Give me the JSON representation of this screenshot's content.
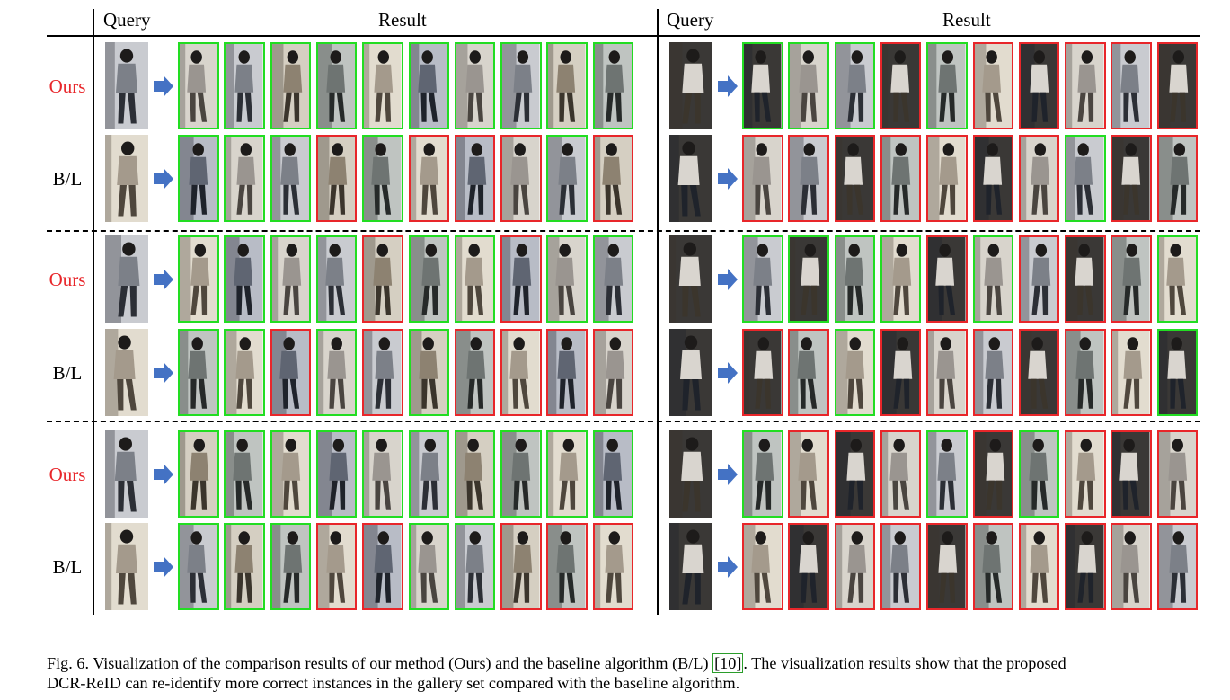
{
  "headers": {
    "left_query": "Query",
    "left_result": "Result",
    "right_query": "Query",
    "right_result": "Result"
  },
  "colors": {
    "correct_border": "#22dd22",
    "wrong_border": "#e8262a",
    "ours_label": "#e8262a",
    "arrow": "#4472c4"
  },
  "rows": [
    {
      "label": "Ours",
      "left": [
        "g",
        "g",
        "g",
        "g",
        "g",
        "g",
        "g",
        "g",
        "g",
        "g"
      ],
      "right": [
        "g",
        "g",
        "g",
        "r",
        "g",
        "r",
        "r",
        "r",
        "r",
        "r"
      ]
    },
    {
      "label": "B/L",
      "left": [
        "g",
        "g",
        "g",
        "r",
        "g",
        "r",
        "r",
        "r",
        "g",
        "r"
      ],
      "right": [
        "r",
        "r",
        "r",
        "r",
        "r",
        "r",
        "r",
        "g",
        "r",
        "r"
      ]
    },
    {
      "label": "Ours",
      "left": [
        "g",
        "g",
        "g",
        "g",
        "r",
        "g",
        "g",
        "r",
        "g",
        "g"
      ],
      "right": [
        "g",
        "g",
        "g",
        "g",
        "r",
        "g",
        "r",
        "r",
        "r",
        "g"
      ]
    },
    {
      "label": "B/L",
      "left": [
        "g",
        "g",
        "r",
        "g",
        "r",
        "g",
        "r",
        "r",
        "r",
        "r"
      ],
      "right": [
        "r",
        "r",
        "g",
        "r",
        "r",
        "r",
        "r",
        "r",
        "r",
        "g"
      ]
    },
    {
      "label": "Ours",
      "left": [
        "g",
        "g",
        "g",
        "g",
        "g",
        "g",
        "g",
        "g",
        "g",
        "g"
      ],
      "right": [
        "g",
        "r",
        "r",
        "r",
        "g",
        "r",
        "g",
        "r",
        "r",
        "r"
      ]
    },
    {
      "label": "B/L",
      "left": [
        "g",
        "g",
        "g",
        "r",
        "r",
        "g",
        "g",
        "r",
        "r",
        "r"
      ],
      "right": [
        "r",
        "r",
        "r",
        "r",
        "r",
        "r",
        "r",
        "r",
        "r",
        "r"
      ]
    }
  ],
  "caption": {
    "prefix": "Fig. 6.  Visualization of the comparison results of our method (Ours) and the baseline algorithm (B/L) ",
    "citation": "[10]",
    "suffix": ". The visualization results show that the proposed",
    "line2": "DCR-ReID can re-identify more correct instances in the gallery set compared with the baseline algorithm."
  }
}
